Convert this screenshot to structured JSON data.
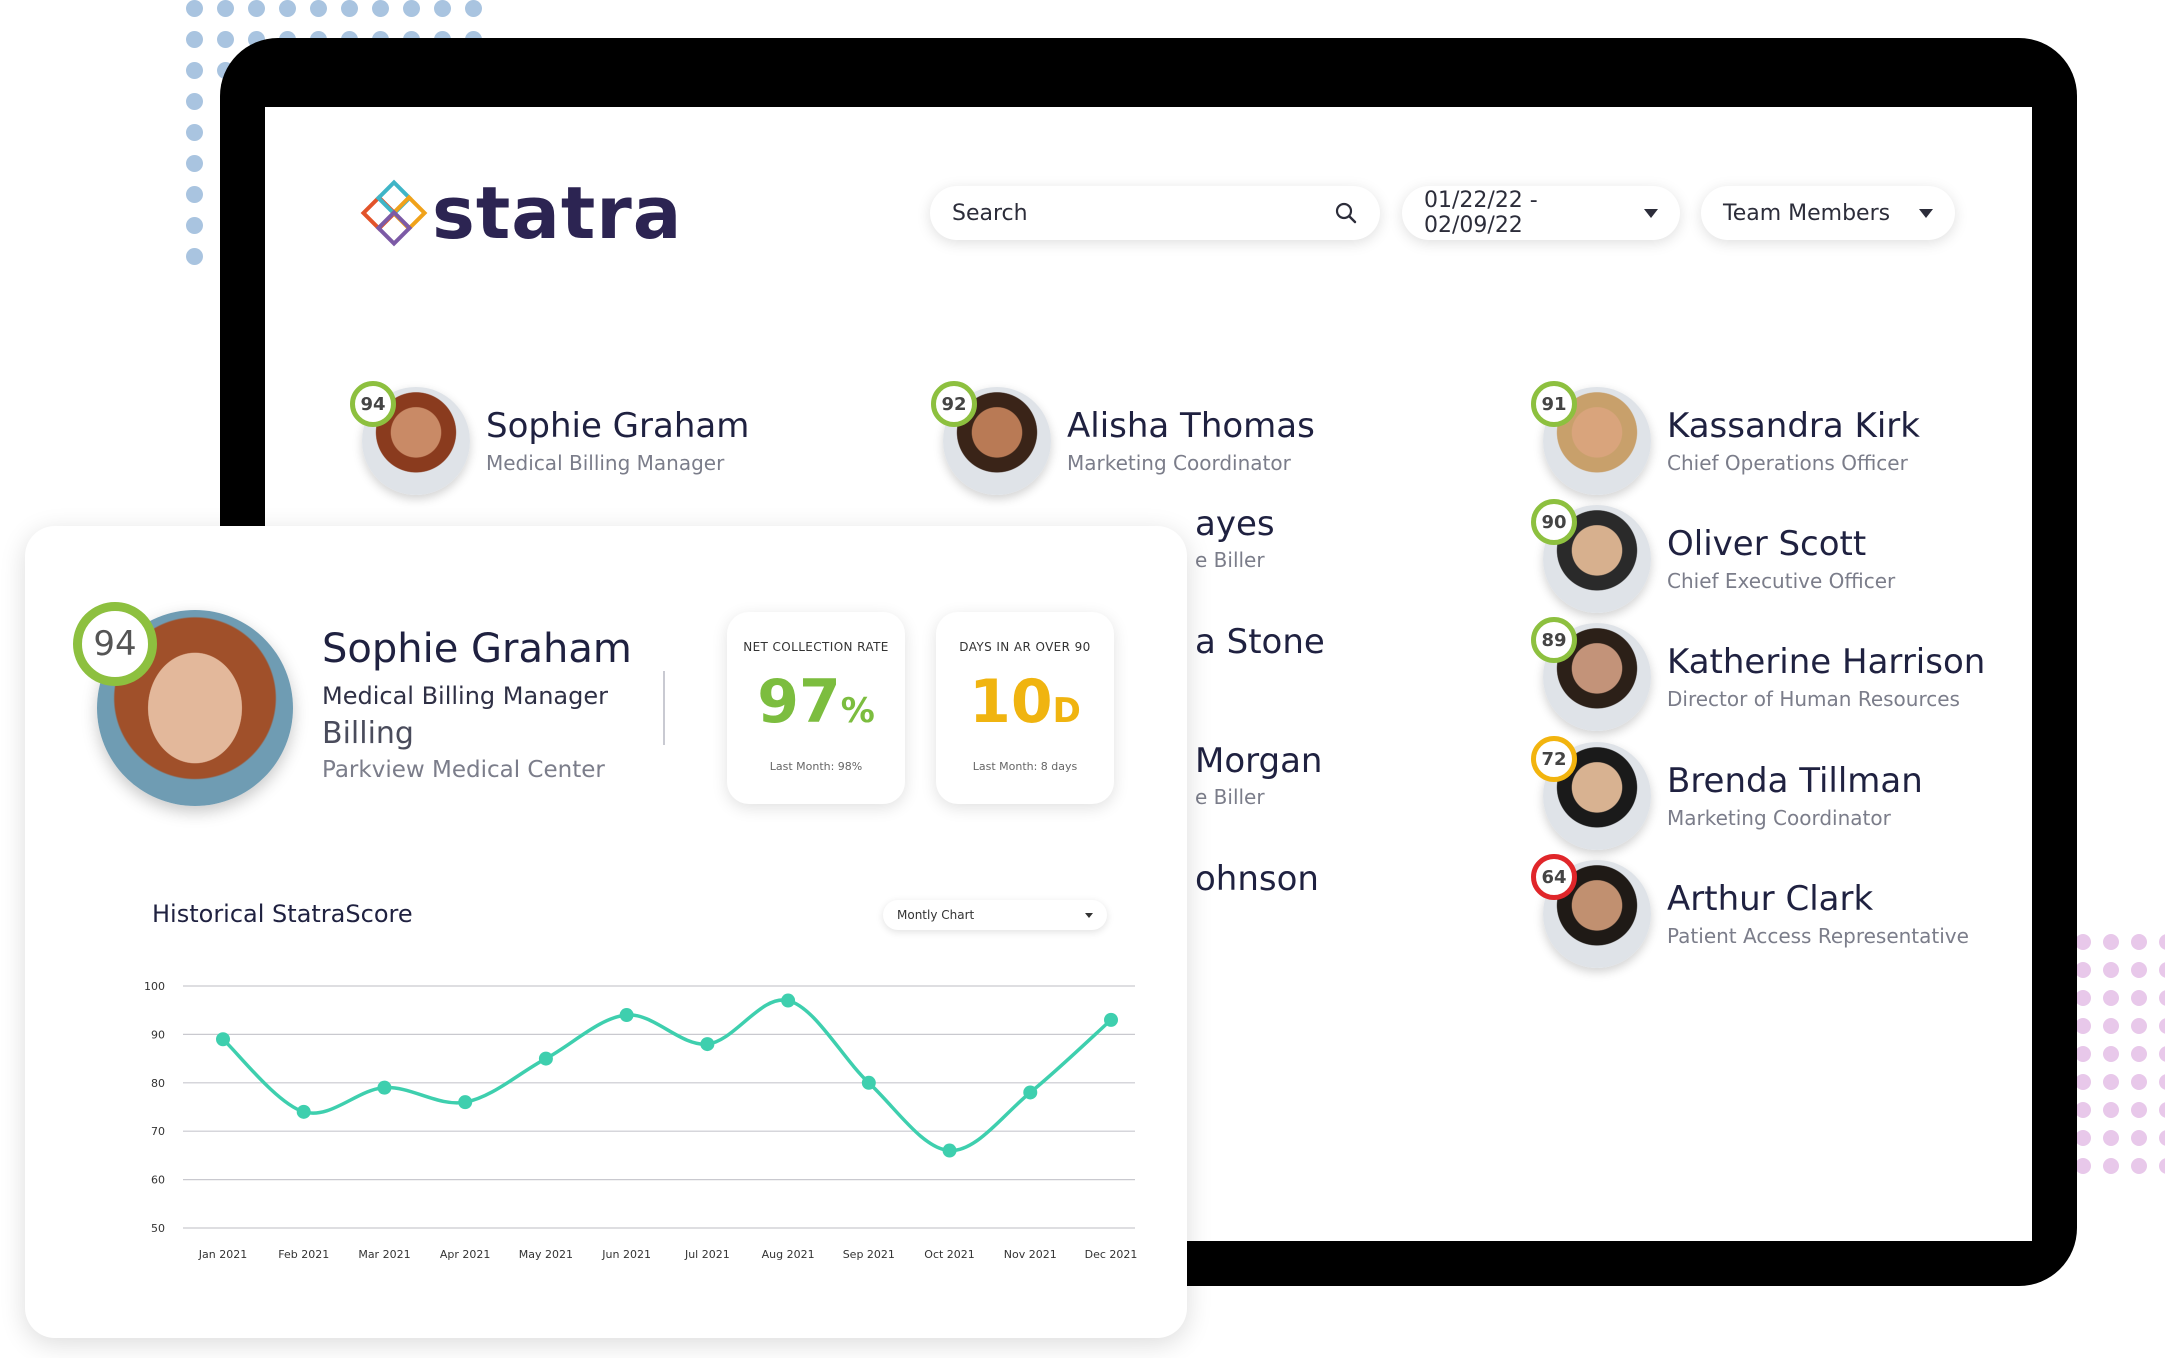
{
  "app": {
    "brand": "statra",
    "search": {
      "label": "Search"
    },
    "date_range": {
      "label": "01/22/22 - 02/09/22"
    },
    "team_filter": {
      "label": "Team Members"
    }
  },
  "members": [
    {
      "name": "Sophie Graham",
      "title": "Medical Billing Manager",
      "score": "94",
      "score_color": "#8dc03f"
    },
    {
      "name": "Alisha Thomas",
      "title": "Marketing Coordinator",
      "score": "92",
      "score_color": "#8dc03f"
    },
    {
      "name": "Kassandra Kirk",
      "title": "Chief Operations Officer",
      "score": "91",
      "score_color": "#8dc03f"
    },
    {
      "name": "ayes",
      "title": "e Biller"
    },
    {
      "name": "Oliver Scott",
      "title": "Chief Executive Officer",
      "score": "90",
      "score_color": "#8dc03f"
    },
    {
      "name": "a Stone",
      "title": ""
    },
    {
      "name": "Katherine Harrison",
      "title": "Director of Human Resources",
      "score": "89",
      "score_color": "#8dc03f"
    },
    {
      "name": "Morgan",
      "title": "e Biller"
    },
    {
      "name": "Brenda Tillman",
      "title": "Marketing Coordinator",
      "score": "72",
      "score_color": "#f2b40e"
    },
    {
      "name": "ohnson",
      "title": ""
    },
    {
      "name": "Arthur Clark",
      "title": "Patient Access Representative",
      "score": "64",
      "score_color": "#e0262a"
    }
  ],
  "profile": {
    "score": "94",
    "name": "Sophie Graham",
    "role": "Medical Billing Manager",
    "department": "Billing",
    "organization": "Parkview Medical Center",
    "metrics": [
      {
        "label": "NET COLLECTION RATE",
        "value": "97",
        "unit": "%",
        "last": "Last Month: 98%",
        "color": "#7cbd3f"
      },
      {
        "label": "DAYS IN AR OVER 90",
        "value": "10",
        "unit": "D",
        "last": "Last Month: 8 days",
        "color": "#f0b410"
      }
    ]
  },
  "chart_data": {
    "type": "line",
    "title": "Historical StatraScore",
    "control": "Montly Chart",
    "categories": [
      "Jan 2021",
      "Feb 2021",
      "Mar 2021",
      "Apr 2021",
      "May 2021",
      "Jun 2021",
      "Jul 2021",
      "Aug 2021",
      "Sep 2021",
      "Oct 2021",
      "Nov 2021",
      "Dec 2021"
    ],
    "values": [
      89,
      74,
      79,
      76,
      85,
      94,
      88,
      97,
      80,
      66,
      78,
      93
    ],
    "yticks": [
      100,
      90,
      80,
      70,
      60,
      50
    ],
    "ylim": [
      50,
      100
    ],
    "line_color": "#3ecfae",
    "grid": true
  }
}
